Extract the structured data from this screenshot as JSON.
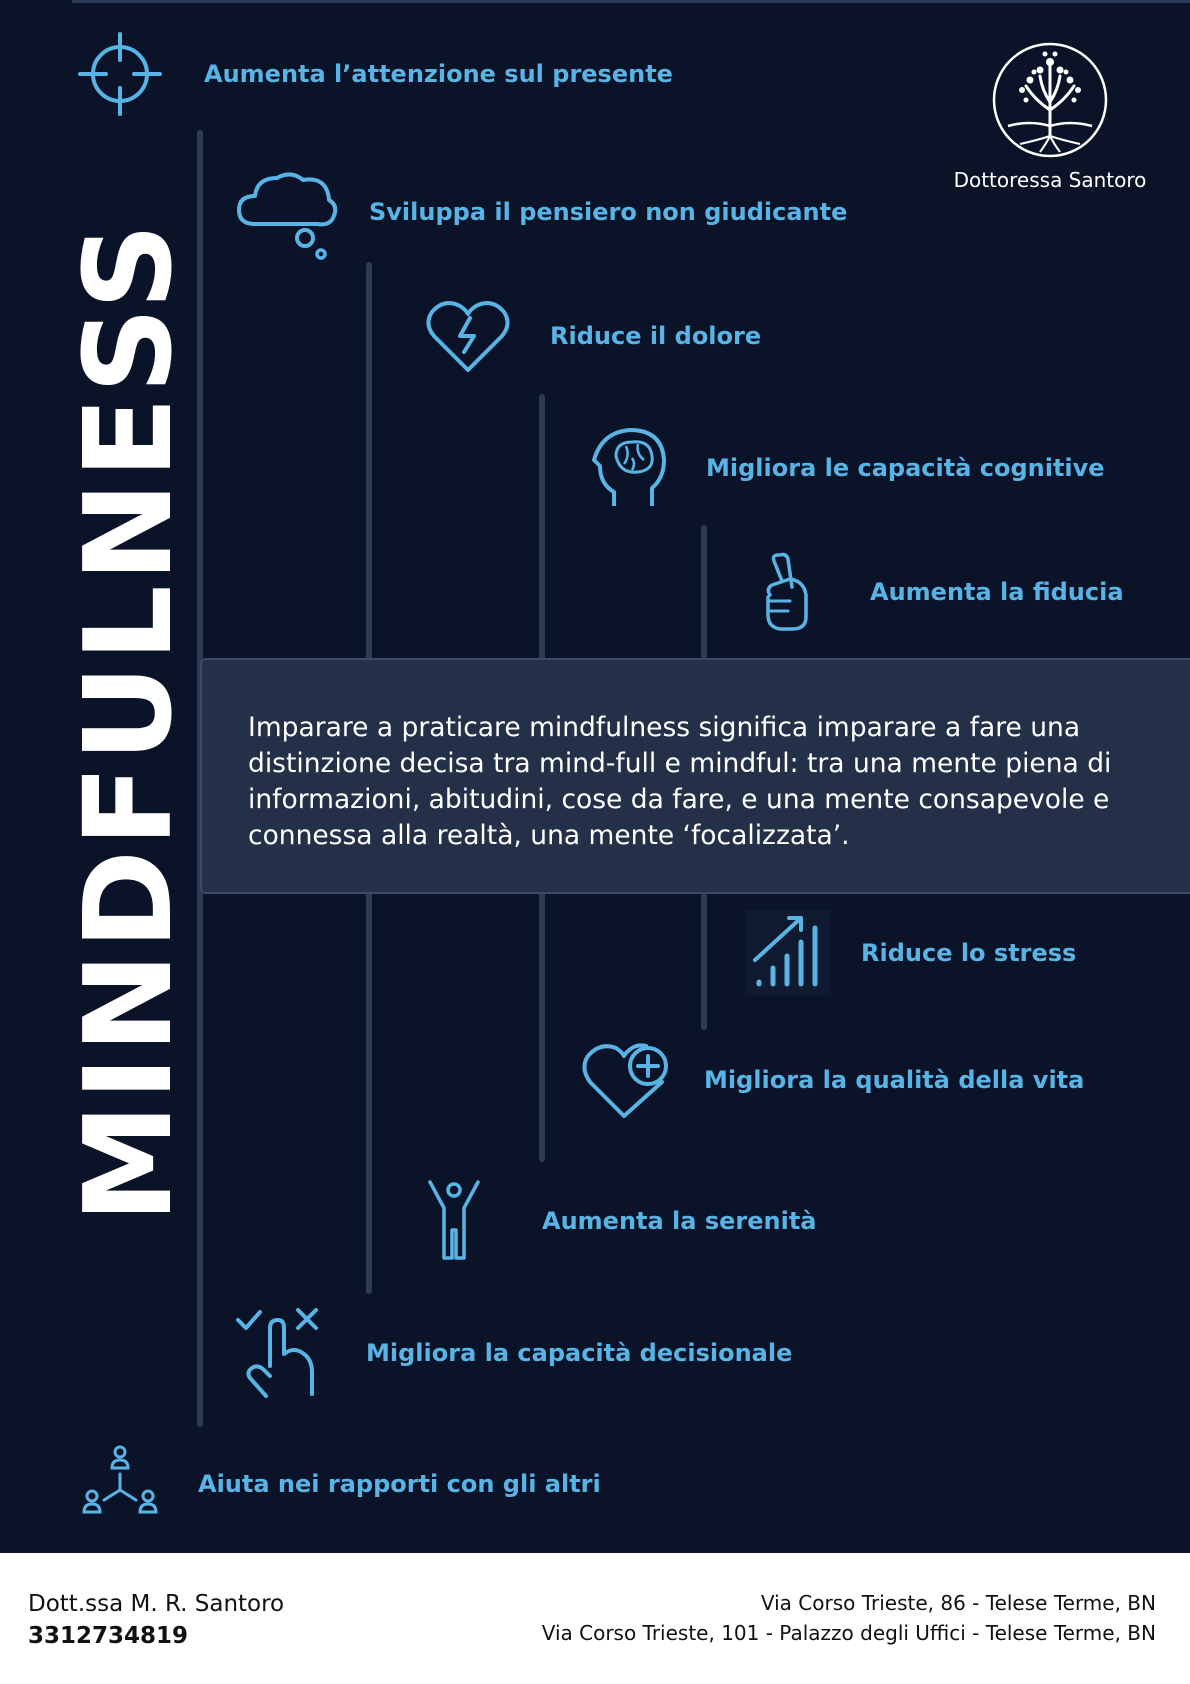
{
  "title": "MINDFULNESS",
  "brand": {
    "name": "Dottoressa Santoro"
  },
  "colors": {
    "background": "#0b1329",
    "accent": "#59b4e6",
    "box": "#233047",
    "line": "#2d3a56"
  },
  "benefits": [
    {
      "label": "Aumenta l’attenzione sul presente",
      "icon": "target-icon"
    },
    {
      "label": "Sviluppa il pensiero non giudicante",
      "icon": "thought-cloud-icon"
    },
    {
      "label": "Riduce il dolore",
      "icon": "broken-heart-icon"
    },
    {
      "label": "Migliora le capacità cognitive",
      "icon": "brain-head-icon"
    },
    {
      "label": "Aumenta la fiducia",
      "icon": "crossed-fingers-icon"
    },
    {
      "label": "Riduce lo stress",
      "icon": "signal-bars-icon"
    },
    {
      "label": "Migliora la qualità della vita",
      "icon": "heart-plus-icon"
    },
    {
      "label": "Aumenta la serenità",
      "icon": "person-arms-up-icon"
    },
    {
      "label": "Migliora la capacità decisionale",
      "icon": "hand-check-cross-icon"
    },
    {
      "label": "Aiuta nei rapporti con gli altri",
      "icon": "people-network-icon"
    }
  ],
  "quote": "Imparare a praticare mindfulness significa imparare a fare una distinzione decisa tra mind-full e mindful: tra una mente piena di informazioni, abitudini, cose da fare, e una mente consapevole e connessa alla realtà, una mente ‘focalizzata’.",
  "footer": {
    "name": "Dott.ssa M. R. Santoro",
    "phone": "3312734819",
    "address_1": "Via Corso Trieste, 86 - Telese Terme, BN",
    "address_2": "Via Corso Trieste, 101 - Palazzo degli Uffici - Telese Terme, BN"
  }
}
